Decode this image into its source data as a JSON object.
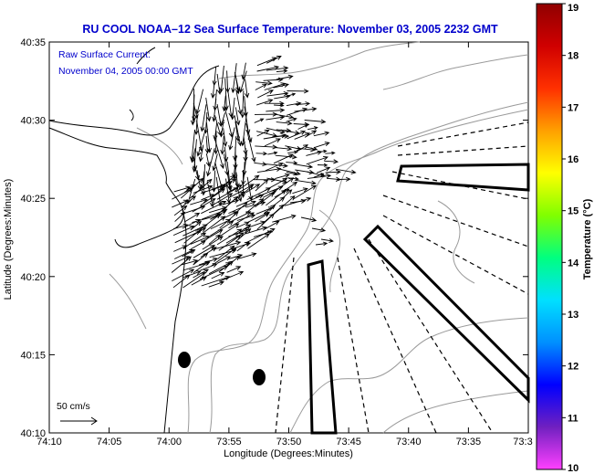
{
  "chart_data": {
    "type": "map",
    "title": "RU COOL  NOAA–12  Sea Surface Temperature:  November 03, 2005 2232 GMT",
    "xlabel": "Longitude (Degrees:Minutes)",
    "ylabel": "Latitude (Degrees:Minutes)",
    "x_ticks": [
      "74:10",
      "74:05",
      "74:00",
      "73:55",
      "73:50",
      "73:45",
      "73:40",
      "73:35",
      "73:3"
    ],
    "y_ticks": [
      "40:35",
      "40:30",
      "40:25",
      "40:20",
      "40:15",
      "40:10"
    ],
    "colorbar": {
      "label": "Temperature (°C)",
      "ticks": [
        "19",
        "18",
        "17",
        "16",
        "15",
        "14",
        "13",
        "12",
        "11",
        "10"
      ],
      "range": [
        10,
        19
      ],
      "colors": [
        "#ff40ff",
        "#7020c0",
        "#0000ff",
        "#0090ff",
        "#00e0ff",
        "#00ff80",
        "#80ff00",
        "#ffff00",
        "#ffa000",
        "#ff3000",
        "#d00000",
        "#900000"
      ]
    },
    "annotations": {
      "current_label": "Raw Surface Current:",
      "current_time": "November 04, 2005 00:00 GMT",
      "scale_label": "50 cm/s"
    },
    "colors": {
      "title": "#0000cc",
      "annotation": "#0000cc",
      "coast": "#000000",
      "contour": "#999999"
    }
  }
}
